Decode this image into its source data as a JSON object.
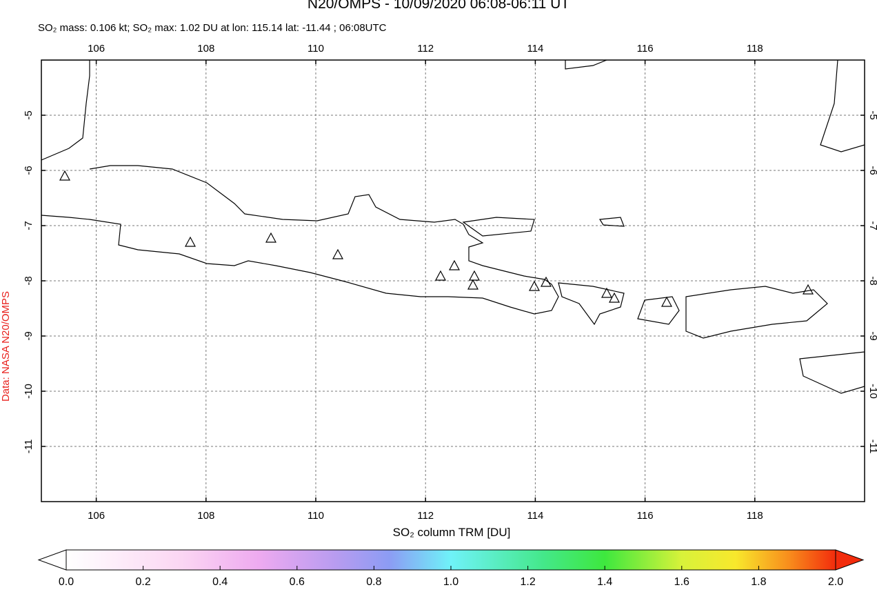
{
  "chart_data": {
    "type": "map",
    "title": "N20/OMPS - 10/09/2020 06:08-06:11 UT",
    "subtitle": "SO₂ mass: 0.106 kt; SO₂ max: 1.02 DU at lon: 115.14 lat: -11.44 ; 06:08UTC",
    "credit": "Data: NASA N20/OMPS",
    "xlim": [
      105,
      120
    ],
    "ylim": [
      -12,
      -4
    ],
    "xticks": [
      106,
      108,
      110,
      112,
      114,
      116,
      118
    ],
    "yticks": [
      -5,
      -6,
      -7,
      -8,
      -9,
      -10,
      -11
    ],
    "grid": true,
    "colorbar": {
      "label": "SO₂ column TRM [DU]",
      "lim": [
        0,
        2
      ],
      "ticks": [
        {
          "value": 0,
          "label": "0.0"
        },
        {
          "value": 0.2,
          "label": "0.2"
        },
        {
          "value": 0.4,
          "label": "0.4"
        },
        {
          "value": 0.6,
          "label": "0.6"
        },
        {
          "value": 0.8,
          "label": "0.8"
        },
        {
          "value": 1,
          "label": "1.0"
        },
        {
          "value": 1.2,
          "label": "1.2"
        },
        {
          "value": 1.4,
          "label": "1.4"
        },
        {
          "value": 1.6,
          "label": "1.6"
        },
        {
          "value": 1.8,
          "label": "1.8"
        },
        {
          "value": 2,
          "label": "2.0"
        }
      ]
    }
  }
}
